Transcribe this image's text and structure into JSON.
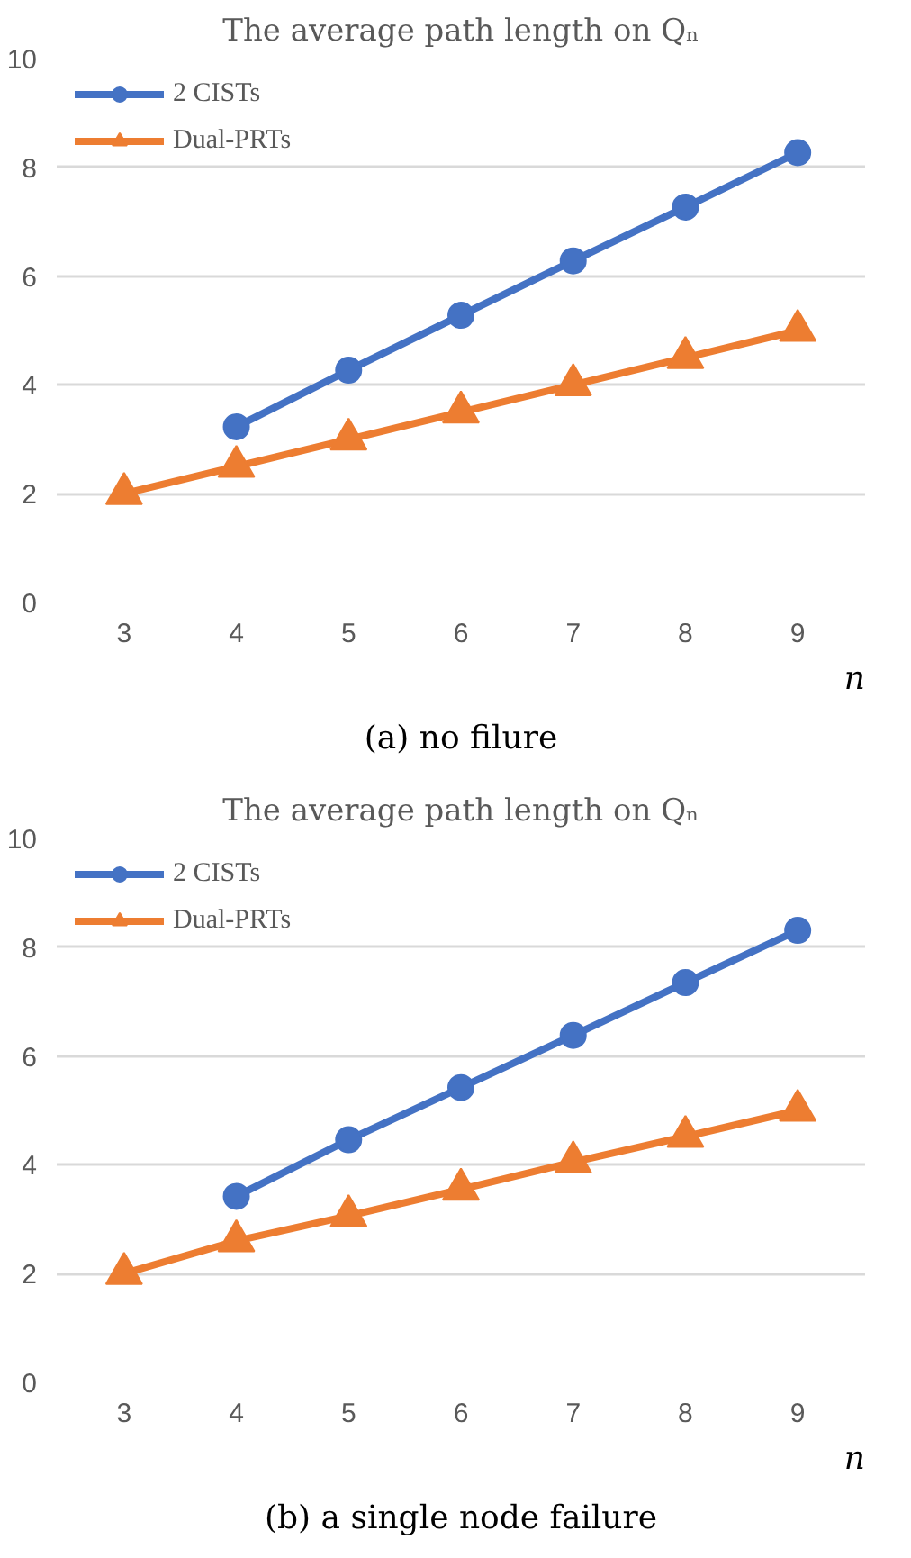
{
  "chart_data": [
    {
      "type": "line",
      "title": "The average path length on Qₙ",
      "xlabel": "n",
      "annotations": [
        "(a) no filure"
      ],
      "categories": [
        "3",
        "4",
        "5",
        "6",
        "7",
        "8",
        "9"
      ],
      "ylim": [
        0,
        10
      ],
      "yticks": [
        0,
        2,
        4,
        6,
        8,
        10
      ],
      "grid": "y",
      "legend": "top left",
      "series": [
        {
          "name": "2 CISTs",
          "color": "#4472c4",
          "marker": "circle",
          "values": [
            null,
            3.23,
            4.27,
            5.28,
            6.28,
            7.27,
            8.27
          ]
        },
        {
          "name": "Dual-PRTs",
          "color": "#ed7d31",
          "marker": "triangle",
          "values": [
            2,
            2.5,
            3,
            3.5,
            4,
            4.5,
            5
          ]
        }
      ]
    },
    {
      "type": "line",
      "title": "The average path length on Qₙ",
      "xlabel": "n",
      "annotations": [
        "(b) a single node failure"
      ],
      "categories": [
        "3",
        "4",
        "5",
        "6",
        "7",
        "8",
        "9"
      ],
      "ylim": [
        0,
        10
      ],
      "yticks": [
        0,
        2,
        4,
        6,
        8,
        10
      ],
      "grid": "y",
      "legend": "top left",
      "series": [
        {
          "name": "2 CISTs",
          "color": "#4472c4",
          "marker": "circle",
          "values": [
            null,
            3.42,
            4.46,
            5.42,
            6.38,
            7.35,
            8.31
          ]
        },
        {
          "name": "Dual-PRTs",
          "color": "#ed7d31",
          "marker": "triangle",
          "values": [
            2,
            2.6,
            3.06,
            3.55,
            4.05,
            4.52,
            5
          ]
        }
      ]
    }
  ]
}
